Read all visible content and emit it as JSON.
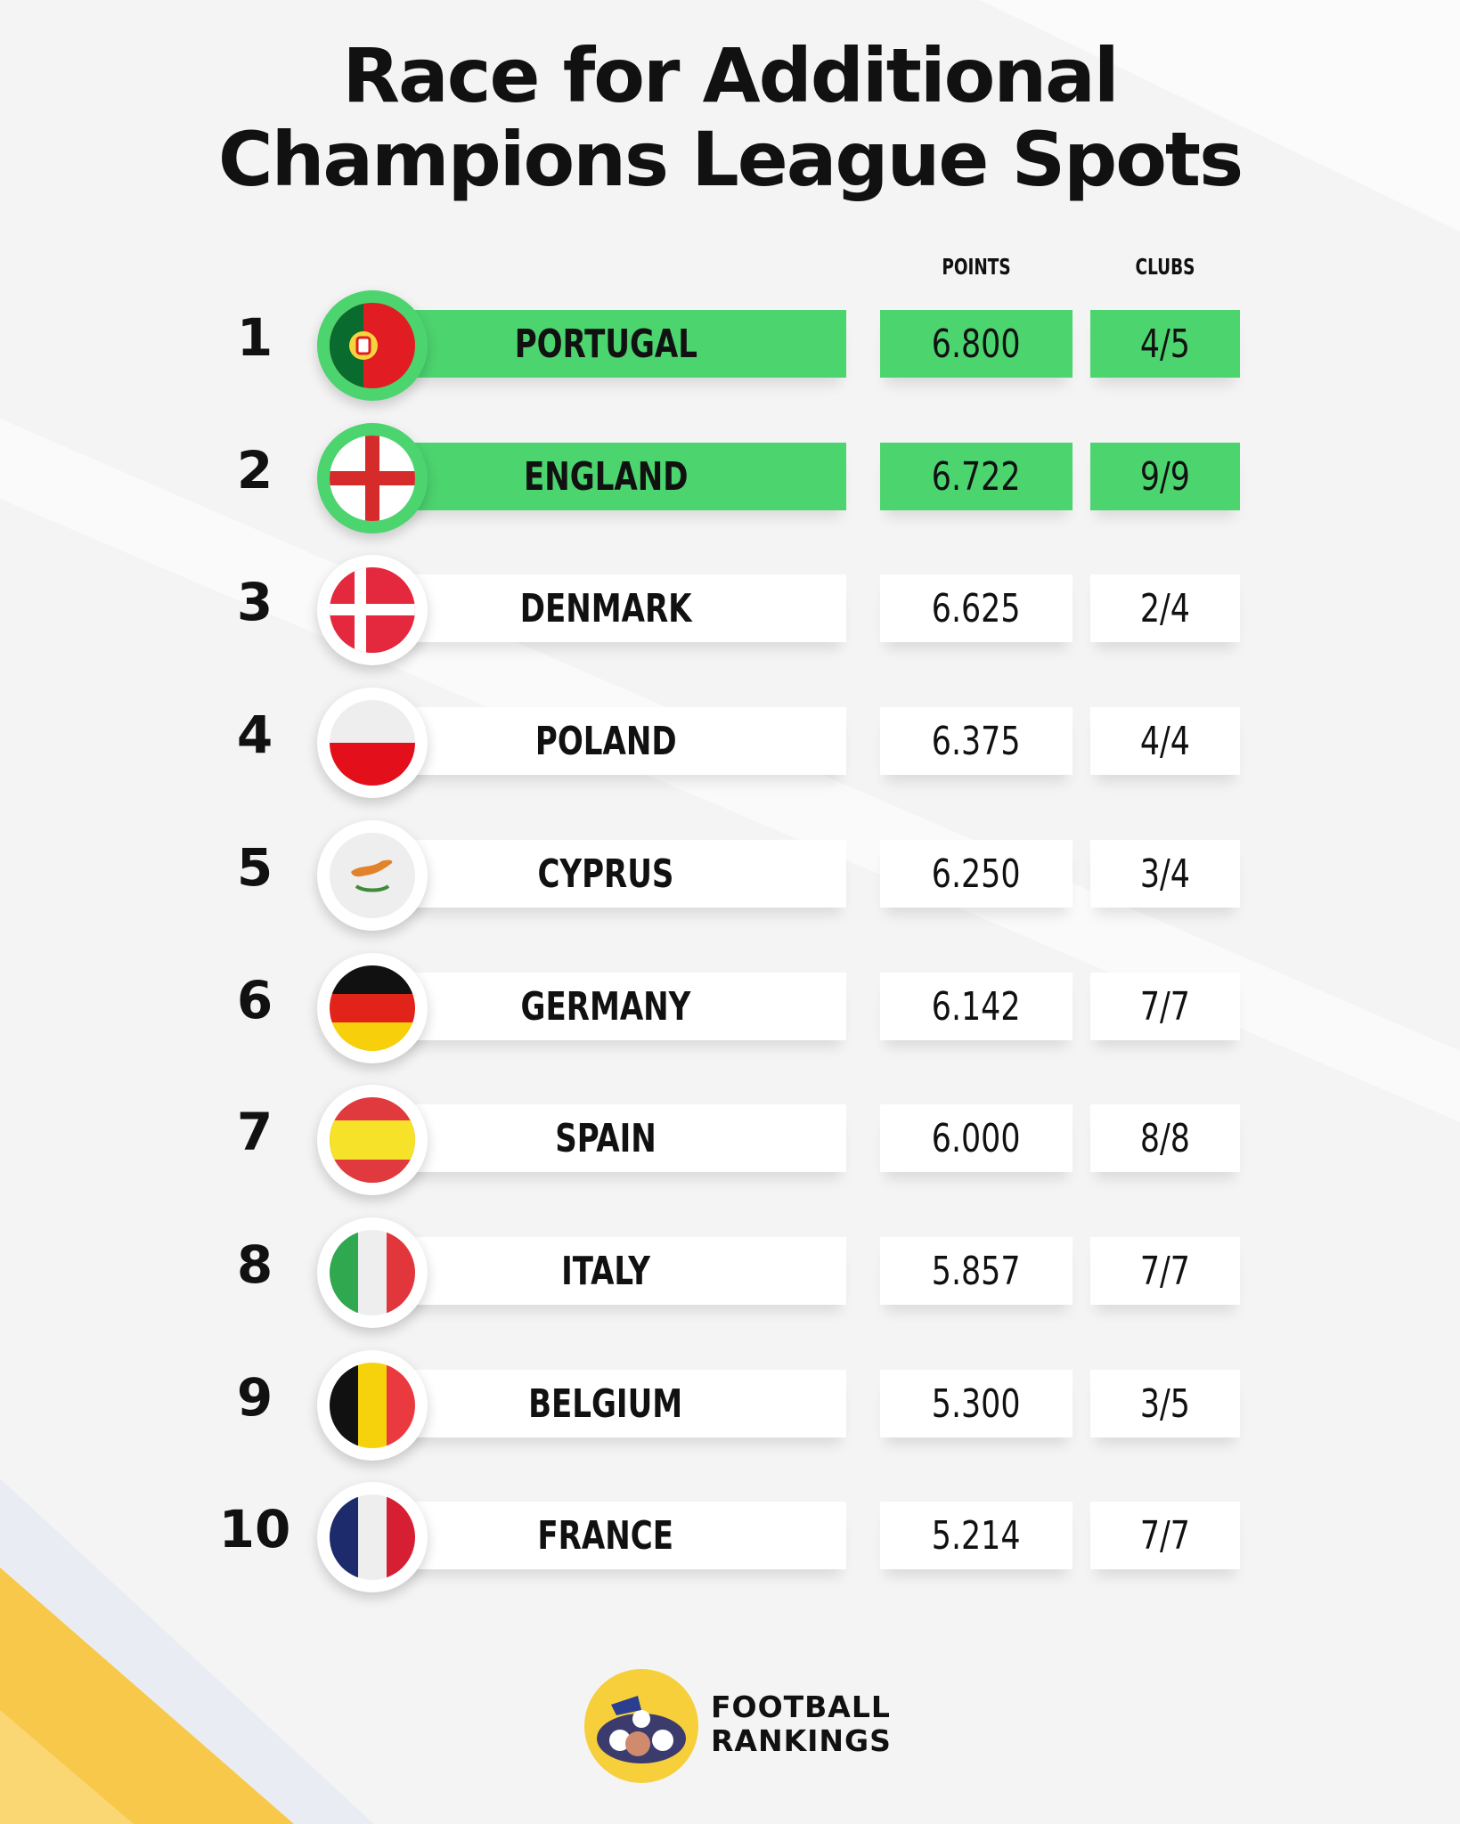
{
  "title_line1": "Race for Additional",
  "title_line2": "Champions League Spots",
  "columns": {
    "points": "POINTS",
    "clubs": "CLUBS"
  },
  "highlight_color": "#4cd46f",
  "chart_data": {
    "type": "table",
    "title": "Race for Additional Champions League Spots",
    "columns": [
      "POINTS",
      "CLUBS"
    ],
    "rows": [
      {
        "rank": "1",
        "country": "PORTUGAL",
        "points": "6.800",
        "clubs": "4/5",
        "highlight": true,
        "flag_icon": "portugal-flag-icon"
      },
      {
        "rank": "2",
        "country": "ENGLAND",
        "points": "6.722",
        "clubs": "9/9",
        "highlight": true,
        "flag_icon": "england-flag-icon"
      },
      {
        "rank": "3",
        "country": "DENMARK",
        "points": "6.625",
        "clubs": "2/4",
        "highlight": false,
        "flag_icon": "denmark-flag-icon"
      },
      {
        "rank": "4",
        "country": "POLAND",
        "points": "6.375",
        "clubs": "4/4",
        "highlight": false,
        "flag_icon": "poland-flag-icon"
      },
      {
        "rank": "5",
        "country": "CYPRUS",
        "points": "6.250",
        "clubs": "3/4",
        "highlight": false,
        "flag_icon": "cyprus-flag-icon"
      },
      {
        "rank": "6",
        "country": "GERMANY",
        "points": "6.142",
        "clubs": "7/7",
        "highlight": false,
        "flag_icon": "germany-flag-icon"
      },
      {
        "rank": "7",
        "country": "SPAIN",
        "points": "6.000",
        "clubs": "8/8",
        "highlight": false,
        "flag_icon": "spain-flag-icon"
      },
      {
        "rank": "8",
        "country": "ITALY",
        "points": "5.857",
        "clubs": "7/7",
        "highlight": false,
        "flag_icon": "italy-flag-icon"
      },
      {
        "rank": "9",
        "country": "BELGIUM",
        "points": "5.300",
        "clubs": "3/5",
        "highlight": false,
        "flag_icon": "belgium-flag-icon"
      },
      {
        "rank": "10",
        "country": "FRANCE",
        "points": "5.214",
        "clubs": "7/7",
        "highlight": false,
        "flag_icon": "france-flag-icon"
      }
    ]
  },
  "brand": {
    "line1": "FOOTBALL",
    "line2": "RANKINGS",
    "logo_icon": "football-rankings-logo-icon"
  }
}
